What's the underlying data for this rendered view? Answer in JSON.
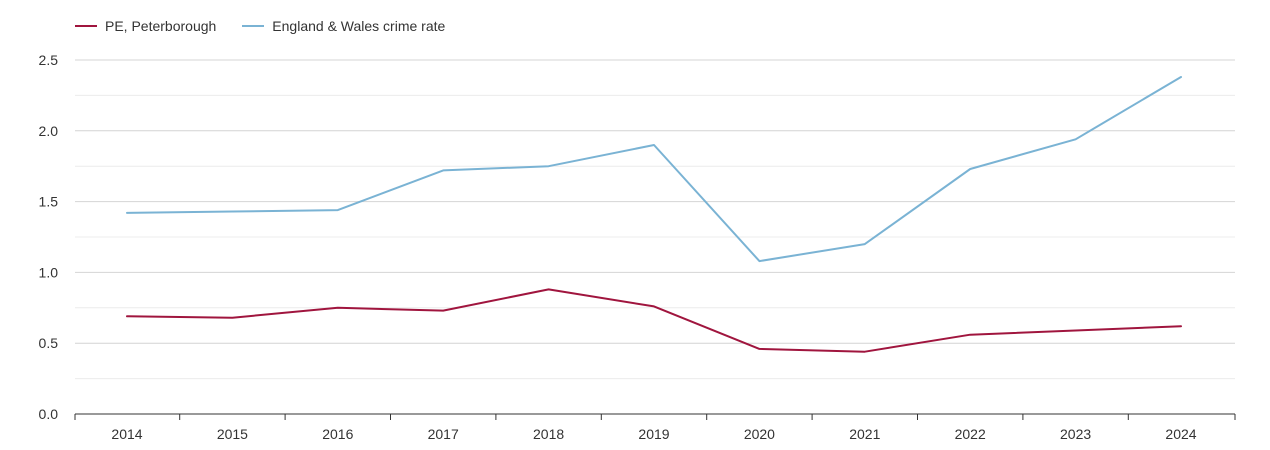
{
  "chart_data": {
    "type": "line",
    "title": "",
    "xlabel": "",
    "ylabel": "",
    "x": [
      2014,
      2015,
      2016,
      2017,
      2018,
      2019,
      2020,
      2021,
      2022,
      2023,
      2024
    ],
    "x_tick_labels": [
      "2014",
      "2015",
      "2016",
      "2017",
      "2018",
      "2019",
      "2020",
      "2021",
      "2022",
      "2023",
      "2024"
    ],
    "ylim": [
      0,
      2.5
    ],
    "y_ticks": [
      0,
      0.5,
      1.0,
      1.5,
      2.0,
      2.5
    ],
    "y_tick_labels": [
      "0.0",
      "0.5",
      "1.0",
      "1.5",
      "2.0",
      "2.5"
    ],
    "grid": true,
    "legend_position": "top-left",
    "series": [
      {
        "name": "PE, Peterborough",
        "color": "#a0153e",
        "values": [
          0.69,
          0.68,
          0.75,
          0.73,
          0.88,
          0.76,
          0.46,
          0.44,
          0.56,
          0.59,
          0.62
        ]
      },
      {
        "name": "England & Wales crime rate",
        "color": "#7ab3d4",
        "values": [
          1.42,
          1.43,
          1.44,
          1.72,
          1.75,
          1.9,
          1.08,
          1.2,
          1.73,
          1.94,
          2.38
        ]
      }
    ]
  }
}
